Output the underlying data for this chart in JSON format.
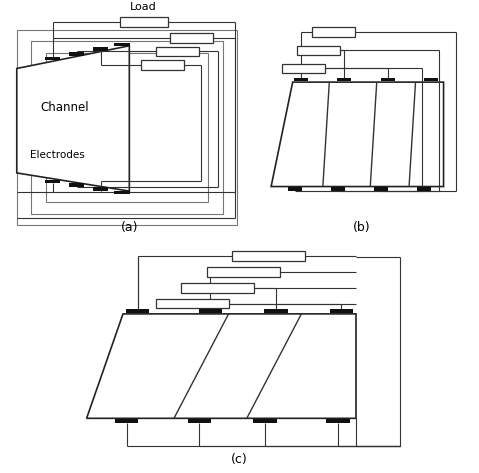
{
  "title_a": "(a)",
  "title_b": "(b)",
  "title_c": "(c)",
  "label_load": "Load",
  "label_channel": "Channel",
  "label_electrodes": "Electrodes",
  "bg_color": "#ffffff",
  "line_color": "#000000",
  "fig_width": 4.79,
  "fig_height": 4.73
}
